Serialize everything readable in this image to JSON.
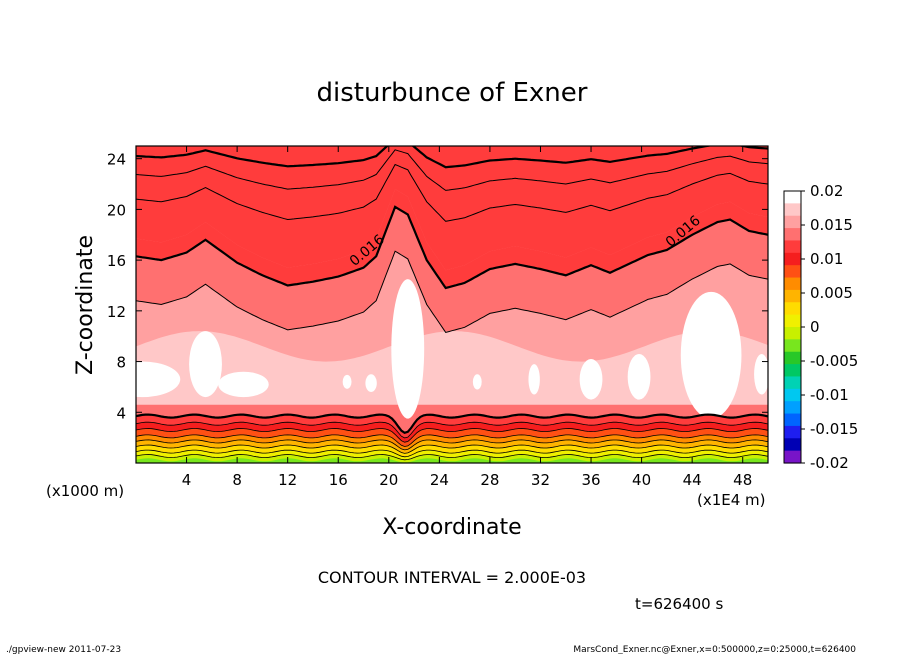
{
  "chart_data": {
    "type": "heatmap",
    "title": "disturbunce of Exner",
    "xlabel": "X-coordinate",
    "ylabel": "Z-coordinate",
    "x_unit": "(x1E4 m)",
    "y_unit": "(x1000 m)",
    "xlim": [
      0,
      50
    ],
    "ylim": [
      0,
      25
    ],
    "x_ticks": [
      "4",
      "8",
      "12",
      "16",
      "20",
      "24",
      "28",
      "32",
      "36",
      "40",
      "44",
      "48"
    ],
    "x_tick_values": [
      4,
      8,
      12,
      16,
      20,
      24,
      28,
      32,
      36,
      40,
      44,
      48
    ],
    "y_ticks": [
      "4",
      "8",
      "12",
      "16",
      "20",
      "24"
    ],
    "y_tick_values": [
      4,
      8,
      12,
      16,
      20,
      24
    ],
    "colorbar": {
      "labels": [
        "0.02",
        "0.015",
        "0.01",
        "0.005",
        "0",
        "-0.005",
        "-0.01",
        "-0.015",
        "-0.02"
      ],
      "values": [
        0.02,
        0.015,
        0.01,
        0.005,
        0,
        -0.005,
        -0.01,
        -0.015,
        -0.02
      ],
      "colors": [
        "#ffffff",
        "#ffc8c8",
        "#ffa0a0",
        "#ff7070",
        "#ff3c3c",
        "#f51e1e",
        "#ff5014",
        "#ff8c00",
        "#ffb400",
        "#ffdc00",
        "#f0f000",
        "#c8f000",
        "#78e61e",
        "#28c828",
        "#00c864",
        "#00d2b4",
        "#00c8f0",
        "#00a0ff",
        "#0064ff",
        "#1e1ef0",
        "#0000b4",
        "#7814c8"
      ]
    },
    "contour_labels": [
      {
        "text": "0.016",
        "x": 18.5,
        "y": 16.5
      },
      {
        "text": "0.016",
        "x": 43.5,
        "y": 18.0
      }
    ],
    "ridge_x": [
      0,
      2,
      4,
      5.5,
      8,
      10,
      12,
      14,
      16,
      18,
      19,
      20.5,
      21.5,
      23,
      24.5,
      26,
      28,
      30,
      32,
      34,
      36,
      37.5,
      39,
      40.5,
      42,
      44,
      46,
      47,
      48.5,
      50
    ],
    "ridge_y": [
      16.3,
      16.0,
      16.6,
      17.6,
      15.8,
      14.8,
      14.0,
      14.3,
      14.7,
      15.4,
      16.3,
      20.2,
      19.6,
      16.0,
      13.8,
      14.2,
      15.3,
      15.7,
      15.3,
      14.8,
      15.6,
      15.0,
      15.7,
      16.4,
      16.8,
      18.0,
      19.0,
      19.2,
      18.3,
      18.0
    ],
    "annotation": "CONTOUR INTERVAL = 2.000E-03",
    "time": "t=626400 s",
    "footer_left": "./gpview-new   2011-07-23",
    "footer_right": "MarsCond_Exner.nc@Exner,x=0:500000,z=0:25000,t=626400"
  }
}
